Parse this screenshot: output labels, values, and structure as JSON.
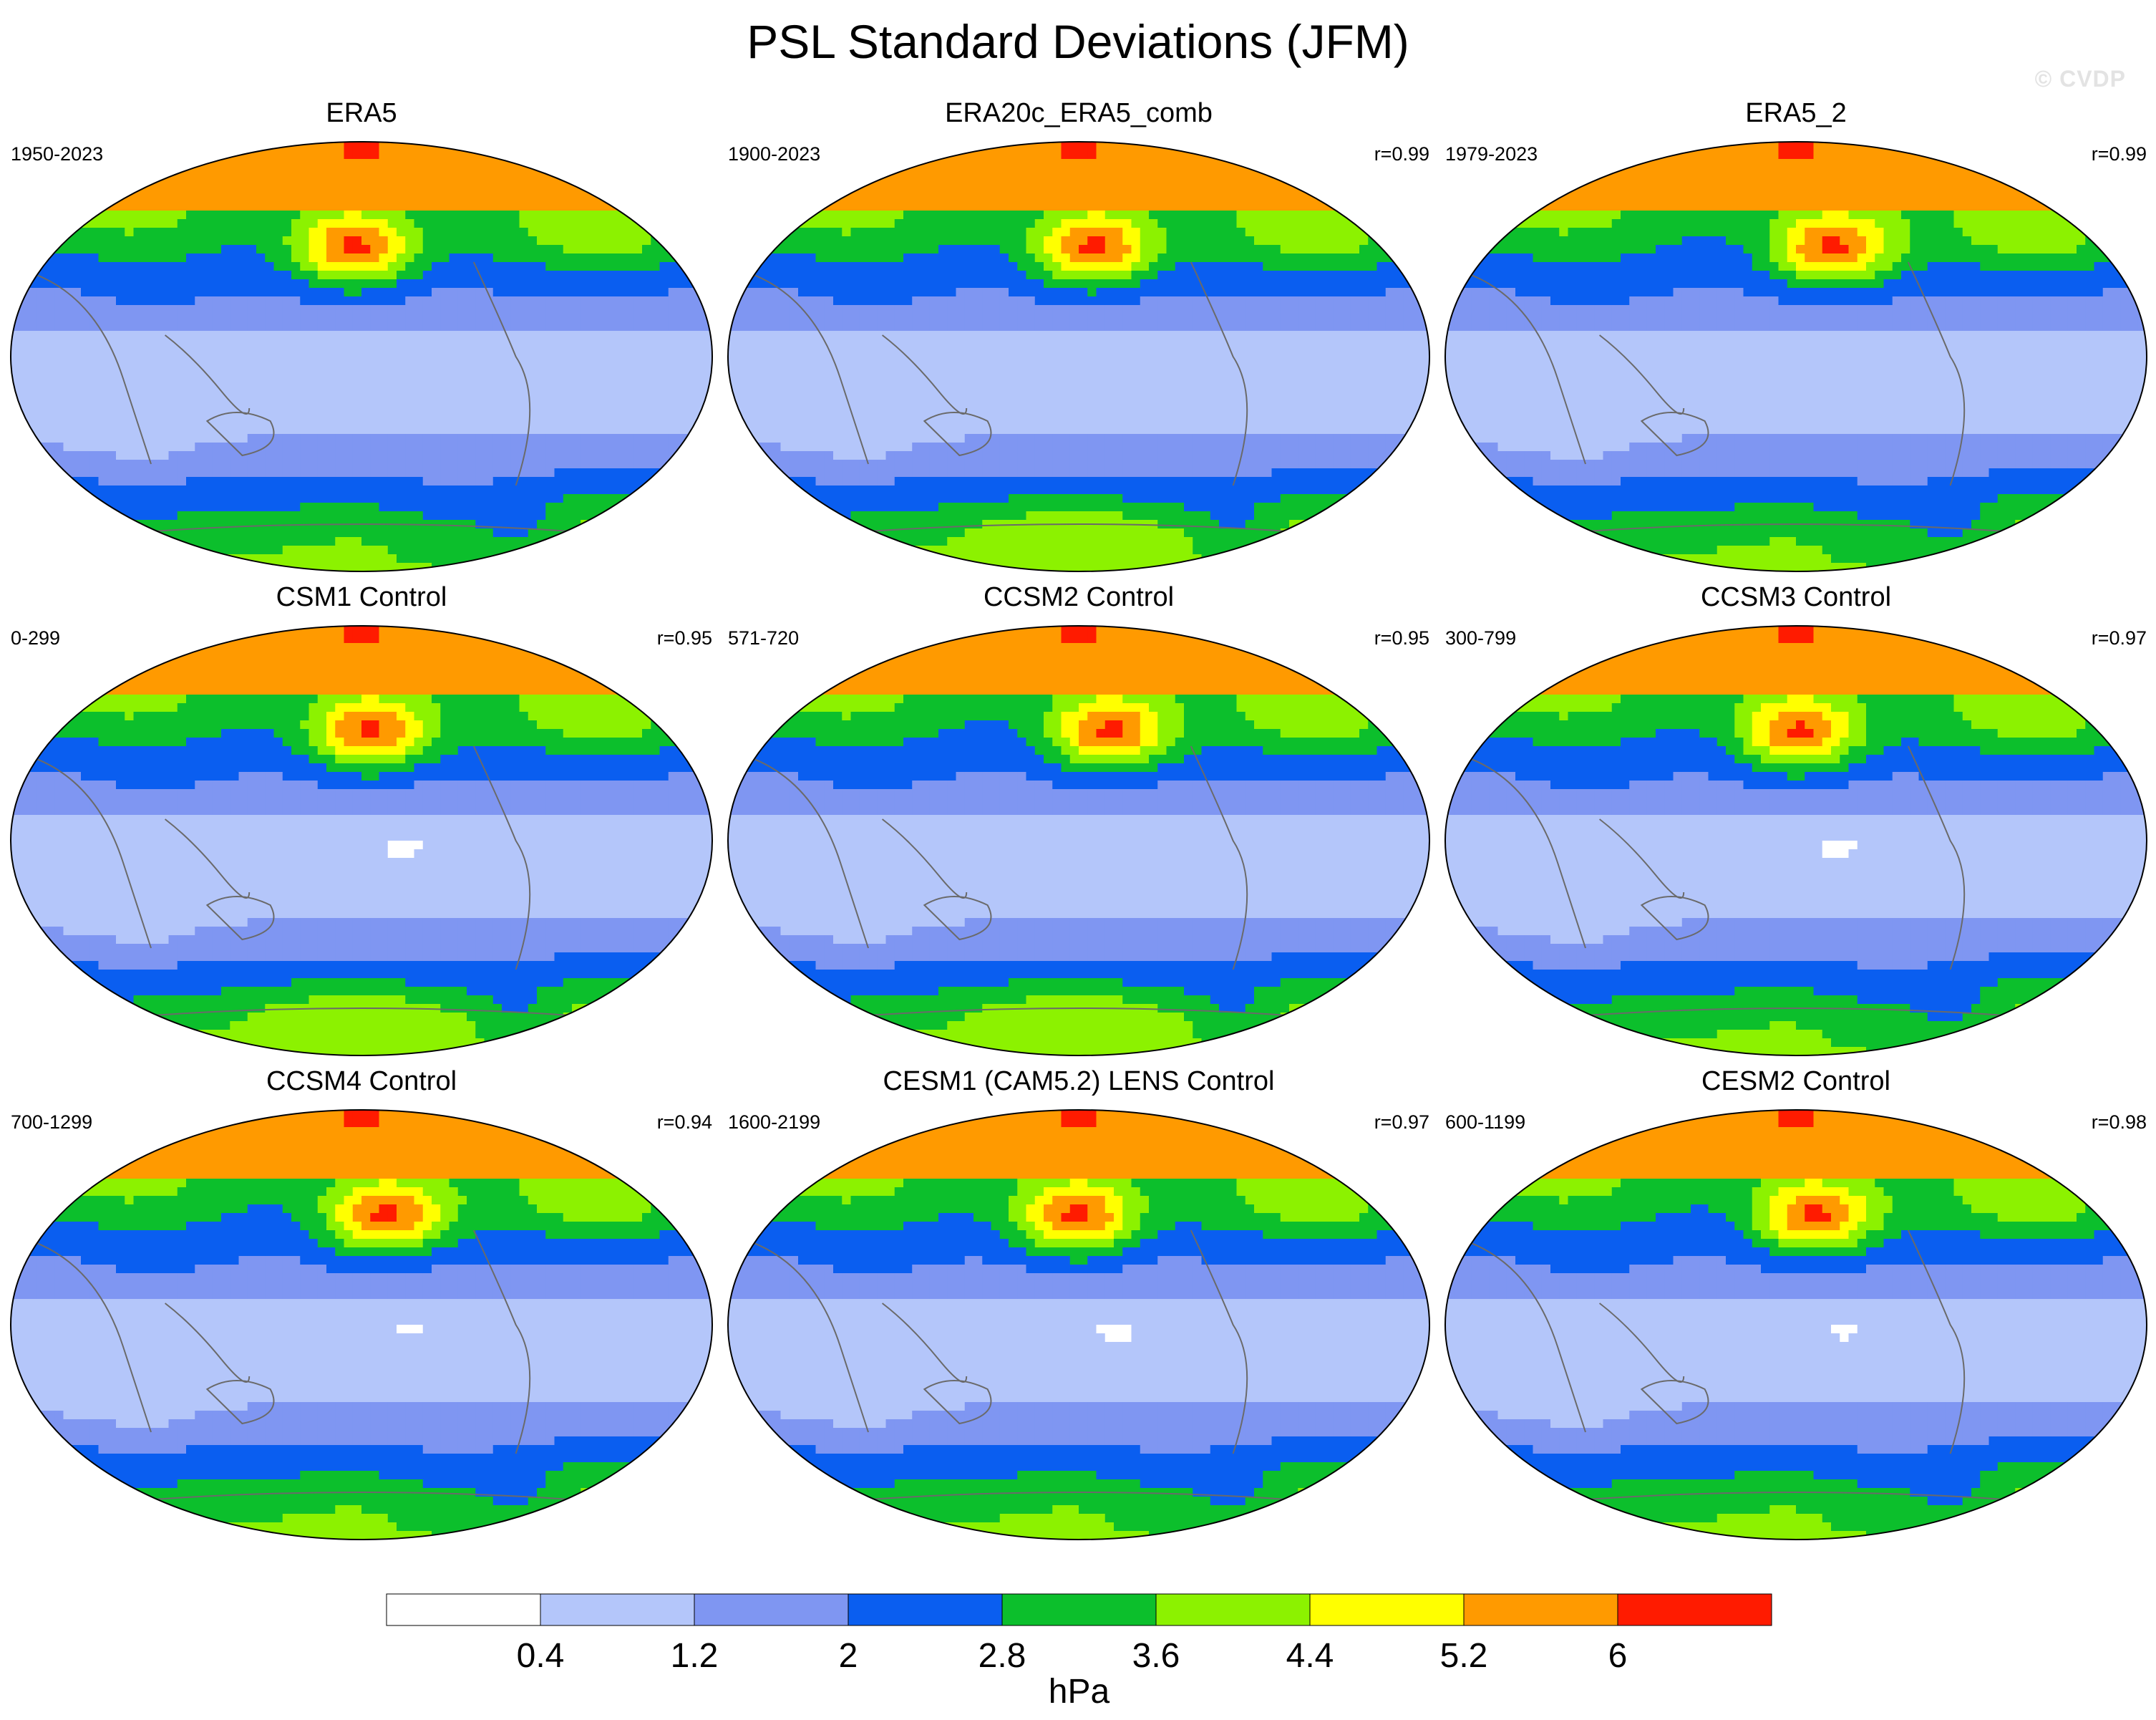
{
  "figure": {
    "title": "PSL Standard Deviations (JFM)",
    "watermark": "© CVDP"
  },
  "chart_data": {
    "type": "heatmap",
    "title": "PSL Standard Deviations (JFM)",
    "variable": "PSL standard deviation",
    "units": "hPa",
    "colorbar": {
      "label": "hPa",
      "tick_labels": [
        "0.4",
        "1.2",
        "2",
        "2.8",
        "3.6",
        "4.4",
        "5.2",
        "6"
      ],
      "levels": [
        0.4,
        1.2,
        2.0,
        2.8,
        3.6,
        4.4,
        5.2,
        6.0
      ],
      "colors": [
        "#ffffff",
        "#b4c6fa",
        "#7f96f2",
        "#0a5ef0",
        "#0cbf2c",
        "#8cf200",
        "#ffff00",
        "#ff9a00",
        "#ff1b00"
      ]
    },
    "panels": [
      {
        "title": "ERA5",
        "years": "1950-2023",
        "r": ""
      },
      {
        "title": "ERA20c_ERA5_comb",
        "years": "1900-2023",
        "r": "r=0.99"
      },
      {
        "title": "ERA5_2",
        "years": "1979-2023",
        "r": "r=0.99"
      },
      {
        "title": "CSM1 Control",
        "years": "0-299",
        "r": "r=0.95"
      },
      {
        "title": "CCSM2 Control",
        "years": "571-720",
        "r": "r=0.95"
      },
      {
        "title": "CCSM3 Control",
        "years": "300-799",
        "r": "r=0.97"
      },
      {
        "title": "CCSM4 Control",
        "years": "700-1299",
        "r": "r=0.94"
      },
      {
        "title": "CESM1 (CAM5.2) LENS Control",
        "years": "1600-2199",
        "r": "r=0.97"
      },
      {
        "title": "CESM2 Control",
        "years": "600-1199",
        "r": "r=0.98"
      }
    ]
  }
}
